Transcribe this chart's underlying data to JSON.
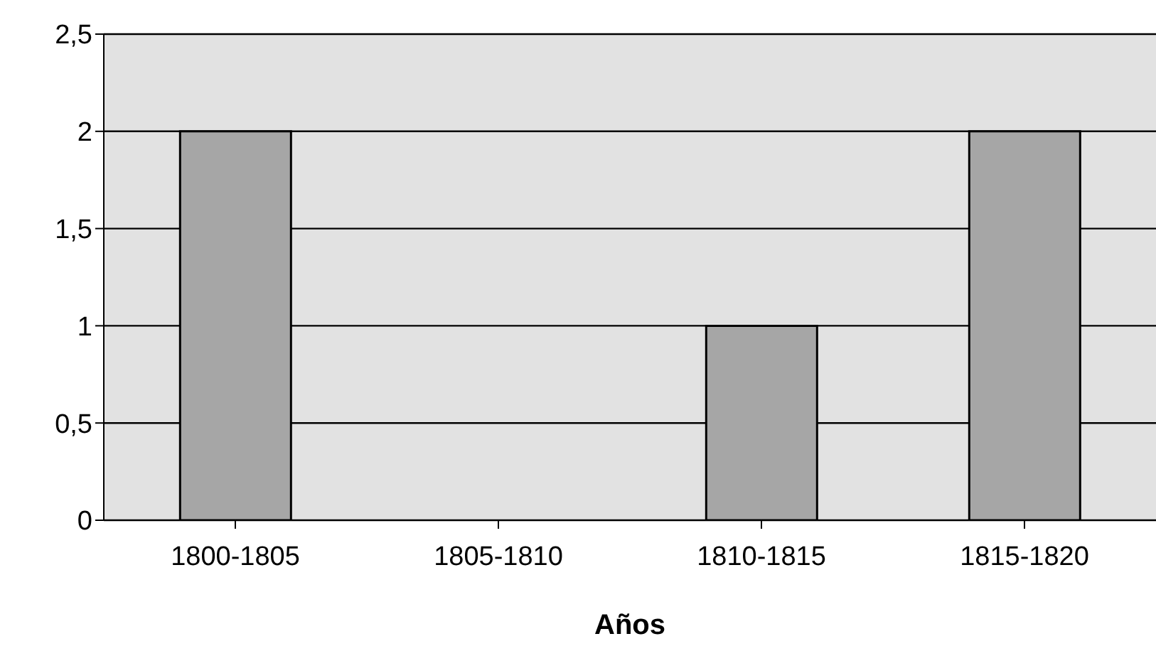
{
  "chart_data": {
    "type": "bar",
    "xlabel": "Años",
    "categories": [
      "1800-1805",
      "1805-1810",
      "1810-1815",
      "1815-1820"
    ],
    "values": [
      2,
      0,
      1,
      2
    ],
    "color": "#a6a6a6",
    "ylim": [
      0,
      2.5
    ],
    "yticks": [
      0,
      {
        "value": 0.5,
        "label": "0,5"
      },
      1,
      {
        "value": 1.5,
        "label": "1,5"
      },
      2,
      {
        "value": 2.5,
        "label": "2,5"
      }
    ],
    "grid": "y"
  }
}
